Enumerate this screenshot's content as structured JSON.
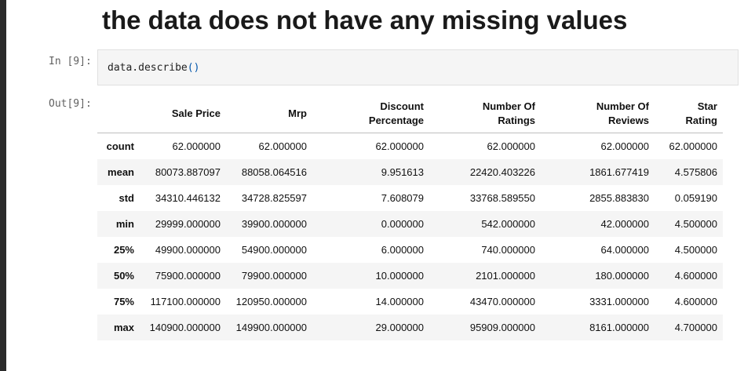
{
  "heading": "the data does not have any missing values",
  "input_prompt": "In [9]:",
  "output_prompt": "Out[9]:",
  "code": {
    "text": "data.describe",
    "parens": "()"
  },
  "table": {
    "columns": [
      {
        "line1": "Sale Price",
        "line2": ""
      },
      {
        "line1": "Mrp",
        "line2": ""
      },
      {
        "line1": "Discount",
        "line2": "Percentage"
      },
      {
        "line1": "Number Of",
        "line2": "Ratings"
      },
      {
        "line1": "Number Of",
        "line2": "Reviews"
      },
      {
        "line1": "Star",
        "line2": "Rating"
      }
    ],
    "rows": [
      {
        "label": "count",
        "values": [
          "62.000000",
          "62.000000",
          "62.000000",
          "62.000000",
          "62.000000",
          "62.000000"
        ]
      },
      {
        "label": "mean",
        "values": [
          "80073.887097",
          "88058.064516",
          "9.951613",
          "22420.403226",
          "1861.677419",
          "4.575806"
        ]
      },
      {
        "label": "std",
        "values": [
          "34310.446132",
          "34728.825597",
          "7.608079",
          "33768.589550",
          "2855.883830",
          "0.059190"
        ]
      },
      {
        "label": "min",
        "values": [
          "29999.000000",
          "39900.000000",
          "0.000000",
          "542.000000",
          "42.000000",
          "4.500000"
        ]
      },
      {
        "label": "25%",
        "values": [
          "49900.000000",
          "54900.000000",
          "6.000000",
          "740.000000",
          "64.000000",
          "4.500000"
        ]
      },
      {
        "label": "50%",
        "values": [
          "75900.000000",
          "79900.000000",
          "10.000000",
          "2101.000000",
          "180.000000",
          "4.600000"
        ]
      },
      {
        "label": "75%",
        "values": [
          "117100.000000",
          "120950.000000",
          "14.000000",
          "43470.000000",
          "3331.000000",
          "4.600000"
        ]
      },
      {
        "label": "max",
        "values": [
          "140900.000000",
          "149900.000000",
          "29.000000",
          "95909.000000",
          "8161.000000",
          "4.700000"
        ]
      }
    ]
  },
  "colors": {
    "prompt": "#616161",
    "code_paren": "#0055aa",
    "stripe": "#f5f5f5"
  }
}
